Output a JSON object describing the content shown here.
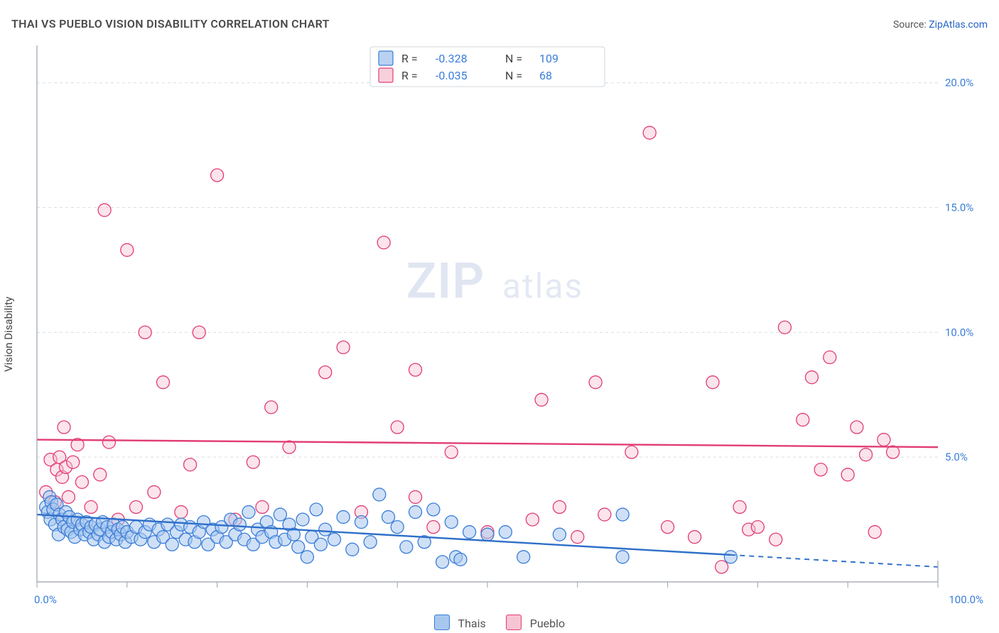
{
  "title": "THAI VS PUEBLO VISION DISABILITY CORRELATION CHART",
  "title_color": "#4a4a4a",
  "source_prefix": "Source: ",
  "source_name": "ZipAtlas.com",
  "source_prefix_color": "#555555",
  "source_link_color": "#2563c9",
  "ylabel": "Vision Disability",
  "watermark_big": "ZIP",
  "watermark_small": "atlas",
  "plot": {
    "xlim": [
      0,
      100
    ],
    "ylim": [
      0,
      21.5
    ],
    "ygrid": [
      5.0,
      10.0,
      15.0,
      20.0
    ],
    "ygrid_labels": [
      "5.0%",
      "10.0%",
      "15.0%",
      "20.0%"
    ],
    "x_axis_labels": {
      "left": "0.0%",
      "right": "100.0%"
    },
    "x_ticks": [
      0,
      10,
      20,
      30,
      40,
      50,
      60,
      70,
      80,
      90,
      100
    ],
    "background_color": "#ffffff",
    "grid_color": "#d9dde5",
    "axis_color": "#9aa1af",
    "axis_value_color": "#3a7dd8",
    "marker_radius": 9,
    "marker_stroke_width": 1.3,
    "trend_line_width": 2.4
  },
  "series": {
    "thais": {
      "label": "Thais",
      "fill": "#a7c7ef",
      "stroke": "#3a7dd8",
      "fill_opacity": 0.55,
      "R": "-0.328",
      "N": "109",
      "trend": {
        "y_at_x0": 2.7,
        "y_at_x100": 0.6,
        "solid_until_x": 77,
        "color": "#2e6fc9"
      },
      "points_scaled": [
        [
          1.0,
          3.0
        ],
        [
          1.2,
          2.8
        ],
        [
          1.4,
          3.4
        ],
        [
          1.5,
          2.5
        ],
        [
          1.6,
          3.2
        ],
        [
          1.8,
          2.9
        ],
        [
          2.0,
          2.3
        ],
        [
          2.2,
          3.1
        ],
        [
          2.4,
          1.9
        ],
        [
          2.5,
          2.7
        ],
        [
          2.8,
          2.5
        ],
        [
          3.0,
          2.2
        ],
        [
          3.2,
          2.8
        ],
        [
          3.4,
          2.1
        ],
        [
          3.6,
          2.6
        ],
        [
          3.8,
          2.0
        ],
        [
          4.0,
          2.4
        ],
        [
          4.2,
          1.8
        ],
        [
          4.5,
          2.5
        ],
        [
          4.8,
          2.1
        ],
        [
          5.0,
          2.3
        ],
        [
          5.3,
          1.9
        ],
        [
          5.5,
          2.4
        ],
        [
          5.8,
          2.0
        ],
        [
          6.0,
          2.2
        ],
        [
          6.3,
          1.7
        ],
        [
          6.5,
          2.3
        ],
        [
          6.8,
          1.9
        ],
        [
          7.0,
          2.1
        ],
        [
          7.3,
          2.4
        ],
        [
          7.5,
          1.6
        ],
        [
          7.8,
          2.2
        ],
        [
          8.0,
          1.8
        ],
        [
          8.3,
          2.0
        ],
        [
          8.5,
          2.3
        ],
        [
          8.8,
          1.7
        ],
        [
          9.0,
          2.1
        ],
        [
          9.3,
          1.9
        ],
        [
          9.5,
          2.2
        ],
        [
          9.8,
          1.6
        ],
        [
          10.0,
          2.0
        ],
        [
          10.5,
          1.8
        ],
        [
          11.0,
          2.2
        ],
        [
          11.5,
          1.7
        ],
        [
          12.0,
          2.0
        ],
        [
          12.5,
          2.3
        ],
        [
          13.0,
          1.6
        ],
        [
          13.5,
          2.1
        ],
        [
          14.0,
          1.8
        ],
        [
          14.5,
          2.3
        ],
        [
          15.0,
          1.5
        ],
        [
          15.5,
          2.0
        ],
        [
          16.0,
          2.3
        ],
        [
          16.5,
          1.7
        ],
        [
          17.0,
          2.2
        ],
        [
          17.5,
          1.6
        ],
        [
          18.0,
          2.0
        ],
        [
          18.5,
          2.4
        ],
        [
          19.0,
          1.5
        ],
        [
          19.5,
          2.1
        ],
        [
          20.0,
          1.8
        ],
        [
          20.5,
          2.2
        ],
        [
          21.0,
          1.6
        ],
        [
          21.5,
          2.5
        ],
        [
          22.0,
          1.9
        ],
        [
          22.5,
          2.3
        ],
        [
          23.0,
          1.7
        ],
        [
          23.5,
          2.8
        ],
        [
          24.0,
          1.5
        ],
        [
          24.5,
          2.1
        ],
        [
          25.0,
          1.8
        ],
        [
          25.5,
          2.4
        ],
        [
          26.0,
          2.0
        ],
        [
          26.5,
          1.6
        ],
        [
          27.0,
          2.7
        ],
        [
          27.5,
          1.7
        ],
        [
          28.0,
          2.3
        ],
        [
          28.5,
          1.9
        ],
        [
          29.0,
          1.4
        ],
        [
          29.5,
          2.5
        ],
        [
          30.0,
          1.0
        ],
        [
          30.5,
          1.8
        ],
        [
          31.0,
          2.9
        ],
        [
          31.5,
          1.5
        ],
        [
          32.0,
          2.1
        ],
        [
          33.0,
          1.7
        ],
        [
          34.0,
          2.6
        ],
        [
          35.0,
          1.3
        ],
        [
          36.0,
          2.4
        ],
        [
          37.0,
          1.6
        ],
        [
          38.0,
          3.5
        ],
        [
          39.0,
          2.6
        ],
        [
          40.0,
          2.2
        ],
        [
          41.0,
          1.4
        ],
        [
          42.0,
          2.8
        ],
        [
          43.0,
          1.6
        ],
        [
          44.0,
          2.9
        ],
        [
          45.0,
          0.8
        ],
        [
          46.0,
          2.4
        ],
        [
          46.5,
          1.0
        ],
        [
          47.0,
          0.9
        ],
        [
          48.0,
          2.0
        ],
        [
          50.0,
          1.9
        ],
        [
          52.0,
          2.0
        ],
        [
          54.0,
          1.0
        ],
        [
          58.0,
          1.9
        ],
        [
          65.0,
          2.7
        ],
        [
          65.0,
          1.0
        ],
        [
          77.0,
          1.0
        ]
      ]
    },
    "pueblo": {
      "label": "Pueblo",
      "fill": "#f6c4d2",
      "stroke": "#e23d74",
      "fill_opacity": 0.45,
      "R": "-0.035",
      "N": "68",
      "trend": {
        "y_at_x0": 5.7,
        "y_at_x100": 5.4,
        "solid_until_x": 100,
        "color": "#e23d74"
      },
      "points_scaled": [
        [
          1.0,
          3.6
        ],
        [
          1.5,
          4.9
        ],
        [
          2.0,
          3.2
        ],
        [
          2.2,
          4.5
        ],
        [
          2.5,
          5.0
        ],
        [
          2.8,
          4.2
        ],
        [
          3.0,
          6.2
        ],
        [
          3.2,
          4.6
        ],
        [
          3.5,
          3.4
        ],
        [
          4.0,
          4.8
        ],
        [
          4.5,
          5.5
        ],
        [
          5.0,
          4.0
        ],
        [
          6.0,
          3.0
        ],
        [
          7.0,
          4.3
        ],
        [
          7.5,
          14.9
        ],
        [
          8.0,
          5.6
        ],
        [
          9.0,
          2.5
        ],
        [
          10.0,
          13.3
        ],
        [
          11.0,
          3.0
        ],
        [
          12.0,
          10.0
        ],
        [
          13.0,
          3.6
        ],
        [
          14.0,
          8.0
        ],
        [
          16.0,
          2.8
        ],
        [
          17.0,
          4.7
        ],
        [
          18.0,
          10.0
        ],
        [
          20.0,
          16.3
        ],
        [
          22.0,
          2.5
        ],
        [
          24.0,
          4.8
        ],
        [
          25.0,
          3.0
        ],
        [
          26.0,
          7.0
        ],
        [
          28.0,
          5.4
        ],
        [
          32.0,
          8.4
        ],
        [
          34.0,
          9.4
        ],
        [
          36.0,
          2.8
        ],
        [
          38.5,
          13.6
        ],
        [
          40.0,
          6.2
        ],
        [
          42.0,
          3.4
        ],
        [
          42.0,
          8.5
        ],
        [
          44.0,
          2.2
        ],
        [
          46.0,
          5.2
        ],
        [
          50.0,
          2.0
        ],
        [
          55.0,
          2.5
        ],
        [
          56.0,
          7.3
        ],
        [
          58.0,
          3.0
        ],
        [
          60.0,
          1.8
        ],
        [
          62.0,
          8.0
        ],
        [
          63.0,
          2.7
        ],
        [
          66.0,
          5.2
        ],
        [
          68.0,
          18.0
        ],
        [
          70.0,
          2.2
        ],
        [
          73.0,
          1.8
        ],
        [
          75.0,
          8.0
        ],
        [
          76.0,
          0.6
        ],
        [
          78.0,
          3.0
        ],
        [
          79.0,
          2.1
        ],
        [
          80.0,
          2.2
        ],
        [
          82.0,
          1.7
        ],
        [
          83.0,
          10.2
        ],
        [
          85.0,
          6.5
        ],
        [
          86.0,
          8.2
        ],
        [
          87.0,
          4.5
        ],
        [
          88.0,
          9.0
        ],
        [
          90.0,
          4.3
        ],
        [
          91.0,
          6.2
        ],
        [
          92.0,
          5.1
        ],
        [
          93.0,
          2.0
        ],
        [
          94.0,
          5.7
        ],
        [
          95.0,
          5.2
        ]
      ]
    }
  },
  "stats_box": {
    "labels": {
      "R": "R =",
      "N": "N ="
    }
  }
}
